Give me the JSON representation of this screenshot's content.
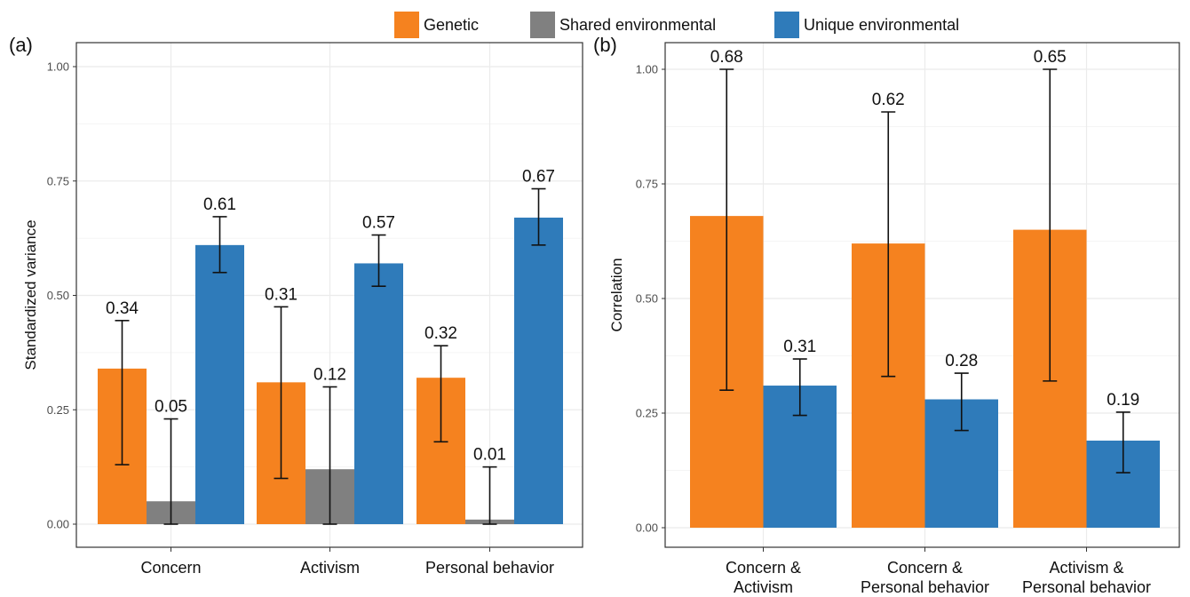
{
  "legend": {
    "items": [
      {
        "name": "Genetic",
        "color": "#F5821F"
      },
      {
        "name": "Shared environmental",
        "color": "#808080"
      },
      {
        "name": "Unique environmental",
        "color": "#2F7BBA"
      }
    ]
  },
  "chart_data": [
    {
      "type": "bar",
      "panel_label": "(a)",
      "title": "",
      "xlabel": "",
      "ylabel": "Standardized variance",
      "ylim": [
        0,
        1
      ],
      "y_ticks": [
        "0.00",
        "0.25",
        "0.50",
        "0.75",
        "1.00"
      ],
      "grid": true,
      "categories": [
        [
          "Concern"
        ],
        [
          "Activism"
        ],
        [
          "Personal behavior"
        ]
      ],
      "series": [
        {
          "name": "Genetic",
          "color": "#F5821F",
          "values": [
            0.34,
            0.31,
            0.32
          ],
          "labels": [
            "0.34",
            "0.31",
            "0.32"
          ],
          "error_low": [
            0.13,
            0.1,
            0.18
          ],
          "error_high": [
            0.445,
            0.475,
            0.39
          ]
        },
        {
          "name": "Shared environmental",
          "color": "#808080",
          "values": [
            0.05,
            0.12,
            0.01
          ],
          "labels": [
            "0.05",
            "0.12",
            "0.01"
          ],
          "error_low": [
            0.0,
            0.0,
            0.0
          ],
          "error_high": [
            0.23,
            0.3,
            0.125
          ]
        },
        {
          "name": "Unique environmental",
          "color": "#2F7BBA",
          "values": [
            0.61,
            0.57,
            0.67
          ],
          "labels": [
            "0.61",
            "0.57",
            "0.67"
          ],
          "error_low": [
            0.55,
            0.52,
            0.61
          ],
          "error_high": [
            0.672,
            0.632,
            0.733
          ]
        }
      ]
    },
    {
      "type": "bar",
      "panel_label": "(b)",
      "title": "",
      "xlabel": "",
      "ylabel": "Correlation",
      "ylim": [
        0,
        1
      ],
      "y_ticks": [
        "0.00",
        "0.25",
        "0.50",
        "0.75",
        "1.00"
      ],
      "grid": true,
      "categories": [
        [
          "Concern &",
          "Activism"
        ],
        [
          "Concern &",
          "Personal behavior"
        ],
        [
          "Activism &",
          "Personal behavior"
        ]
      ],
      "series": [
        {
          "name": "Genetic",
          "color": "#F5821F",
          "values": [
            0.68,
            0.62,
            0.65
          ],
          "labels": [
            "0.68",
            "0.62",
            "0.65"
          ],
          "error_low": [
            0.3,
            0.33,
            0.32
          ],
          "error_high": [
            1.0,
            0.907,
            1.0
          ]
        },
        {
          "name": "Unique environmental",
          "color": "#2F7BBA",
          "values": [
            0.31,
            0.28,
            0.19
          ],
          "labels": [
            "0.31",
            "0.28",
            "0.19"
          ],
          "error_low": [
            0.245,
            0.212,
            0.12
          ],
          "error_high": [
            0.368,
            0.337,
            0.252
          ]
        }
      ]
    }
  ]
}
